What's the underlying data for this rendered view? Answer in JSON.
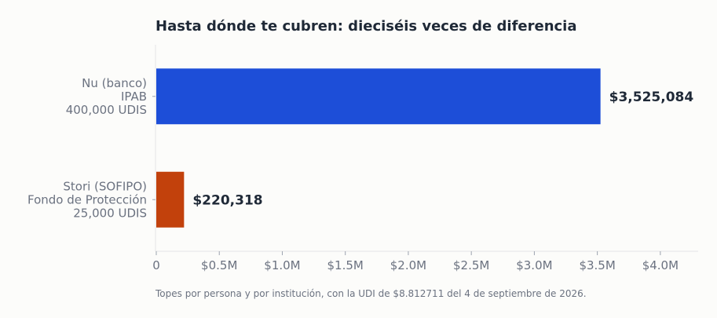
{
  "chart_data": {
    "type": "bar",
    "orientation": "horizontal",
    "title": "Hasta dónde te cubren: dieciséis veces de diferencia",
    "categories": [
      [
        "Nu (banco)",
        "IPAB",
        "400,000 UDIS"
      ],
      [
        "Stori (SOFIPO)",
        "Fondo de Protección",
        "25,000 UDIS"
      ]
    ],
    "values": [
      3525084,
      220318
    ],
    "value_labels": [
      "$3,525,084",
      "$220,318"
    ],
    "colors": [
      "#1d4ed8",
      "#c2410c"
    ],
    "xlim": [
      0,
      4300000
    ],
    "xticks": [
      0,
      500000,
      1000000,
      1500000,
      2000000,
      2500000,
      3000000,
      3500000,
      4000000
    ],
    "xtick_labels": [
      "0",
      "$0.5M",
      "$1.0M",
      "$1.5M",
      "$2.0M",
      "$2.5M",
      "$3.0M",
      "$3.5M",
      "$4.0M"
    ],
    "grid": false,
    "footnote": "Topes por persona y por institución, con la UDI de $8.812711 del 4 de septiembre de 2026."
  }
}
